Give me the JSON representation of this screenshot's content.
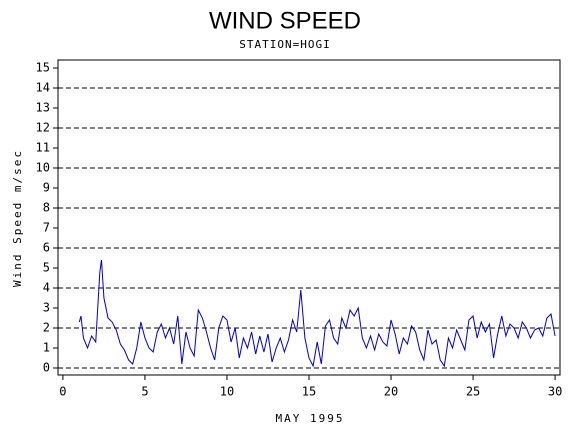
{
  "chart_data": {
    "type": "line",
    "title": "WIND SPEED",
    "subtitle": "STATION=HOGI",
    "x_label": "MAY 1995",
    "y_label": "Wind Speed m/sec",
    "xlim": [
      -0.3,
      30.3
    ],
    "xticks": [
      0,
      5,
      10,
      15,
      20,
      25,
      30
    ],
    "ylim": [
      -0.35,
      15.4
    ],
    "yticks": [
      0,
      1,
      2,
      3,
      4,
      5,
      6,
      7,
      8,
      9,
      10,
      11,
      12,
      13,
      14,
      15
    ],
    "grid_lines": [
      0,
      2,
      4,
      6,
      8,
      10,
      12,
      14
    ],
    "series": [
      {
        "color": "#0000cc",
        "x": [
          1.0,
          1.1,
          1.25,
          1.5,
          1.75,
          2.0,
          2.25,
          2.35,
          2.5,
          2.75,
          3.0,
          3.25,
          3.5,
          3.75,
          4.0,
          4.25,
          4.5,
          4.75,
          5.0,
          5.25,
          5.5,
          5.75,
          6.0,
          6.25,
          6.5,
          6.75,
          7.0,
          7.25,
          7.5,
          7.75,
          8.0,
          8.25,
          8.5,
          8.75,
          9.0,
          9.25,
          9.5,
          9.75,
          10.0,
          10.25,
          10.5,
          10.75,
          11.0,
          11.25,
          11.5,
          11.75,
          12.0,
          12.25,
          12.5,
          12.75,
          13.0,
          13.25,
          13.5,
          13.75,
          14.0,
          14.25,
          14.5,
          14.75,
          15.0,
          15.25,
          15.5,
          15.75,
          16.0,
          16.25,
          16.5,
          16.75,
          17.0,
          17.25,
          17.5,
          17.75,
          18.0,
          18.25,
          18.5,
          18.75,
          19.0,
          19.25,
          19.5,
          19.75,
          20.0,
          20.25,
          20.5,
          20.75,
          21.0,
          21.25,
          21.5,
          21.75,
          22.0,
          22.25,
          22.5,
          22.75,
          23.0,
          23.25,
          23.5,
          23.75,
          24.0,
          24.25,
          24.5,
          24.75,
          25.0,
          25.25,
          25.5,
          25.75,
          26.0,
          26.25,
          26.5,
          26.75,
          27.0,
          27.25,
          27.5,
          27.75,
          28.0,
          28.25,
          28.5,
          28.75,
          29.0,
          29.25,
          29.5,
          29.75,
          30.0
        ],
        "values": [
          2.3,
          2.6,
          1.5,
          1.0,
          1.6,
          1.3,
          4.8,
          5.4,
          3.5,
          2.5,
          2.3,
          1.9,
          1.2,
          0.9,
          0.4,
          0.2,
          1.0,
          2.3,
          1.5,
          1.0,
          0.8,
          1.8,
          2.2,
          1.5,
          2.0,
          1.2,
          2.6,
          0.2,
          1.8,
          1.0,
          0.6,
          2.9,
          2.5,
          1.8,
          1.0,
          0.4,
          2.0,
          2.6,
          2.4,
          1.3,
          2.0,
          0.5,
          1.5,
          1.0,
          1.8,
          0.7,
          1.6,
          0.8,
          1.7,
          0.3,
          1.0,
          1.5,
          0.8,
          1.4,
          2.4,
          1.8,
          3.9,
          1.5,
          0.5,
          0.1,
          1.3,
          0.2,
          2.1,
          2.4,
          1.5,
          1.2,
          2.5,
          2.0,
          2.9,
          2.6,
          3.0,
          1.5,
          1.0,
          1.6,
          0.9,
          1.7,
          1.3,
          1.1,
          2.4,
          1.7,
          0.7,
          1.5,
          1.2,
          2.1,
          1.8,
          0.9,
          0.4,
          1.9,
          1.2,
          1.4,
          0.4,
          0.1,
          1.5,
          1.0,
          1.9,
          1.4,
          0.9,
          2.4,
          2.6,
          1.5,
          2.3,
          1.8,
          2.2,
          0.5,
          1.7,
          2.6,
          1.6,
          2.2,
          2.0,
          1.5,
          2.3,
          2.0,
          1.5,
          1.9,
          2.0,
          1.6,
          2.5,
          2.7,
          1.6
        ]
      }
    ]
  }
}
